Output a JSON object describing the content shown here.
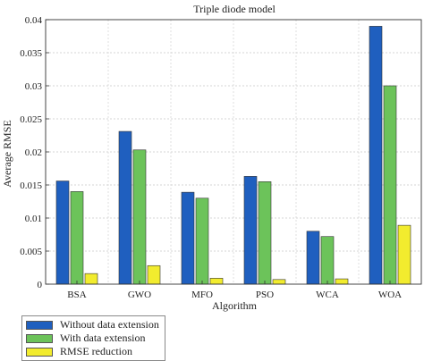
{
  "chart_data": {
    "type": "bar",
    "title": "Triple diode model",
    "xlabel": "Algorithm",
    "ylabel": "Average RMSE",
    "categories": [
      "BSA",
      "GWO",
      "MFO",
      "PSO",
      "WCA",
      "WOA"
    ],
    "ylim": [
      0,
      0.04
    ],
    "yticks": [
      "0",
      "0.005",
      "0.01",
      "0.015",
      "0.02",
      "0.025",
      "0.03",
      "0.035",
      "0.04"
    ],
    "grid": true,
    "legend_position": "bottom-left",
    "series": [
      {
        "name": "Without data extension",
        "color": "#1f5fbf",
        "values": [
          0.0156,
          0.0231,
          0.0139,
          0.0163,
          0.008,
          0.039
        ]
      },
      {
        "name": "With data extension",
        "color": "#6cc35a",
        "values": [
          0.014,
          0.0203,
          0.013,
          0.0155,
          0.0072,
          0.03
        ]
      },
      {
        "name": "RMSE reduction",
        "color": "#f2ec2e",
        "values": [
          0.0016,
          0.0028,
          0.0009,
          0.0007,
          0.0008,
          0.0089
        ]
      }
    ]
  }
}
